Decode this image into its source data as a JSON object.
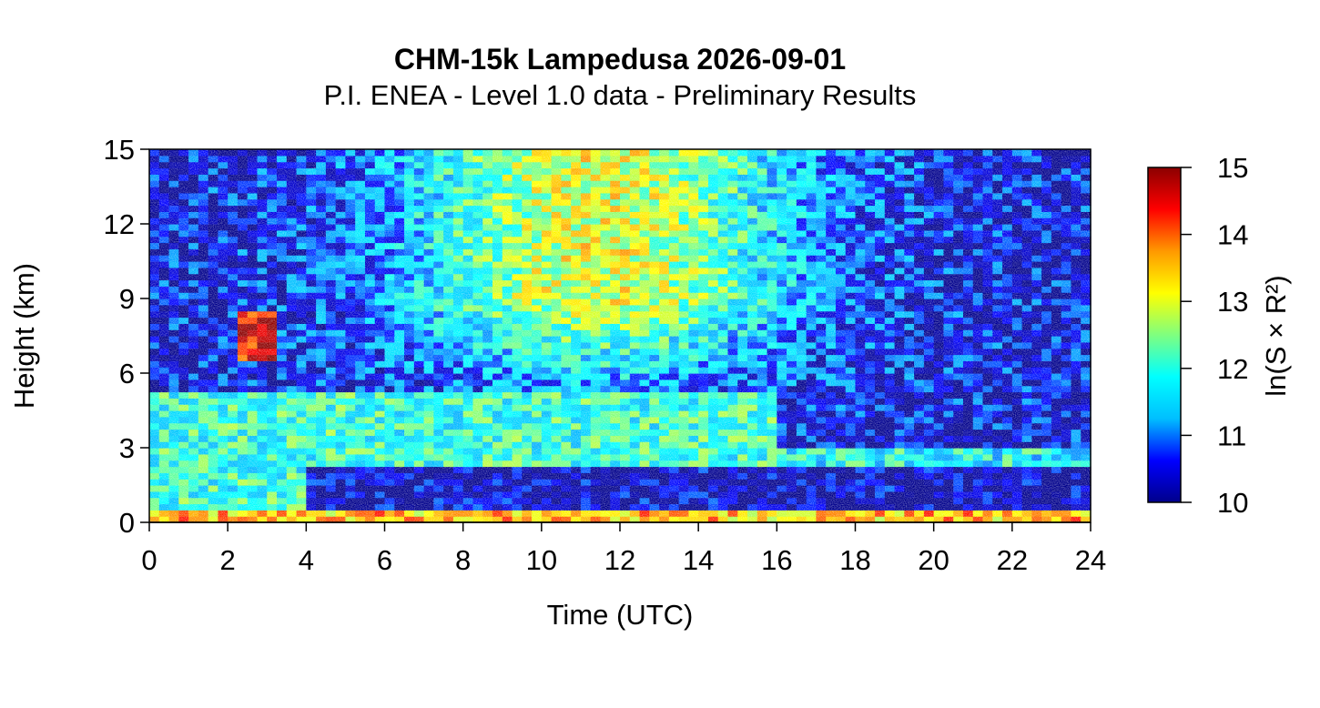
{
  "chart_data": {
    "type": "heatmap",
    "title": "CHM-15k Lampedusa 2026-09-01",
    "subtitle": "P.I. ENEA - Level 1.0 data - Preliminary Results",
    "xlabel": "Time (UTC)",
    "ylabel": "Height (km)",
    "xlim": [
      0,
      24
    ],
    "ylim": [
      0,
      15
    ],
    "x_ticks": [
      0,
      2,
      4,
      6,
      8,
      10,
      12,
      14,
      16,
      18,
      20,
      22,
      24
    ],
    "y_ticks": [
      0,
      3,
      6,
      9,
      12,
      15
    ],
    "colorbar": {
      "label": "ln(S × R²)",
      "range": [
        10,
        15
      ],
      "ticks": [
        10,
        11,
        12,
        13,
        14,
        15
      ],
      "colormap": [
        "#00008b",
        "#0000ff",
        "#00bfff",
        "#00ffff",
        "#7fff7f",
        "#ffff00",
        "#ff9900",
        "#ff0000",
        "#8b0000"
      ]
    },
    "features": [
      {
        "name": "surface layer",
        "time_range": [
          0,
          24
        ],
        "height_range": [
          0,
          0.5
        ],
        "value": 13.5
      },
      {
        "name": "boundary layer",
        "time_range": [
          0,
          16
        ],
        "height_range": [
          0.5,
          5.2
        ],
        "value": 12.0
      },
      {
        "name": "residual aerosol layer",
        "time_range": [
          16,
          24
        ],
        "height_range": [
          2.3,
          2.9
        ],
        "value": 11.8
      },
      {
        "name": "cloud",
        "time_range": [
          2.2,
          3.2
        ],
        "height_range": [
          6.6,
          8.4
        ],
        "value": 14.5
      },
      {
        "name": "clean layer",
        "time_range": [
          4,
          24
        ],
        "height_range": [
          0.5,
          2.2
        ],
        "value": 10.2
      }
    ],
    "grid": false,
    "legend": "right"
  }
}
